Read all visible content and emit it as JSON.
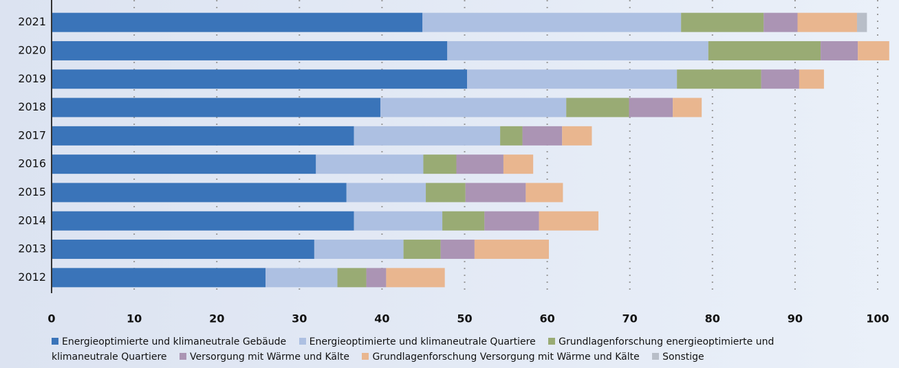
{
  "chart_data": {
    "type": "stacked-bar-horizontal",
    "categories": [
      "2021",
      "2020",
      "2019",
      "2018",
      "2017",
      "2016",
      "2015",
      "2014",
      "2013",
      "2012"
    ],
    "series": [
      {
        "name": "Energieoptimierte und klimaneutrale Gebäude",
        "color": "#3a74b9",
        "values": [
          44.9,
          47.9,
          50.3,
          39.8,
          36.6,
          32.0,
          35.7,
          36.6,
          31.8,
          25.9
        ]
      },
      {
        "name": "Energieoptimierte und klimaneutrale Quartiere",
        "color": "#adc0e2",
        "values": [
          31.3,
          31.6,
          25.4,
          22.5,
          17.7,
          13.0,
          9.6,
          10.7,
          10.8,
          8.7
        ]
      },
      {
        "name": "Grundlagenforschung energieoptimierte und klimaneutrale Quartiere",
        "color": "#99ab74",
        "values": [
          10.0,
          13.6,
          10.2,
          7.6,
          2.7,
          4.0,
          4.8,
          5.1,
          4.5,
          3.5
        ]
      },
      {
        "name": "Versorgung mit Wärme und Kälte",
        "color": "#ab94b4",
        "values": [
          4.1,
          4.5,
          4.6,
          5.3,
          4.8,
          5.7,
          7.3,
          6.6,
          4.1,
          2.4
        ]
      },
      {
        "name": "Grundlagenforschung Versorgung mit Wärme und Kälte",
        "color": "#e9b68f",
        "values": [
          7.2,
          3.8,
          3.0,
          3.5,
          3.6,
          3.6,
          4.5,
          7.2,
          9.0,
          7.1
        ]
      },
      {
        "name": "Sonstige",
        "color": "#b8bec8",
        "values": [
          1.2,
          0,
          0,
          0,
          0,
          0,
          0,
          0,
          0,
          0
        ]
      }
    ],
    "xlim": [
      0,
      102
    ],
    "xticks": [
      0,
      10,
      20,
      30,
      40,
      50,
      60,
      70,
      80,
      90,
      100
    ],
    "grid": true
  }
}
